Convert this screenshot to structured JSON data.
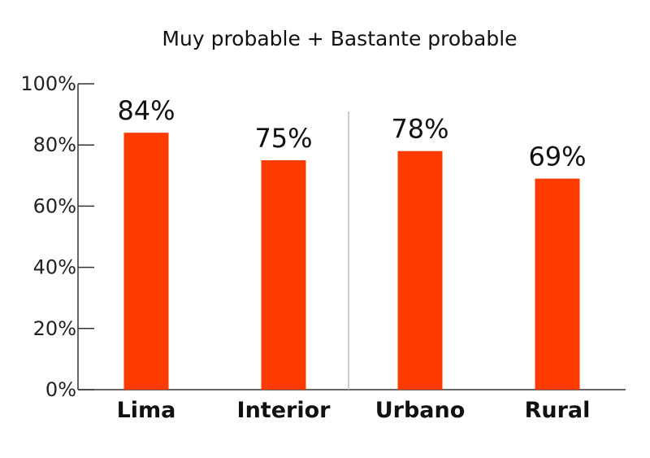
{
  "chart_data": {
    "type": "bar",
    "title": "Muy probable + Bastante probable",
    "categories": [
      "Lima",
      "Interior",
      "Urbano",
      "Rural"
    ],
    "values": [
      84,
      75,
      78,
      69
    ],
    "value_labels": [
      "84%",
      "75%",
      "78%",
      "69%"
    ],
    "ylim": [
      0,
      100
    ],
    "yticks": [
      {
        "value": 0,
        "label": "0%"
      },
      {
        "value": 20,
        "label": "20%"
      },
      {
        "value": 40,
        "label": "40%"
      },
      {
        "value": 60,
        "label": "60%"
      },
      {
        "value": 80,
        "label": "80%"
      },
      {
        "value": 100,
        "label": "100%"
      }
    ],
    "grid": false,
    "legend": "none",
    "separator_between": [
      "Interior",
      "Urbano"
    ],
    "colors": {
      "bar": "#ff3b00",
      "axis": "#333333",
      "separator": "#bbbbbb"
    }
  }
}
